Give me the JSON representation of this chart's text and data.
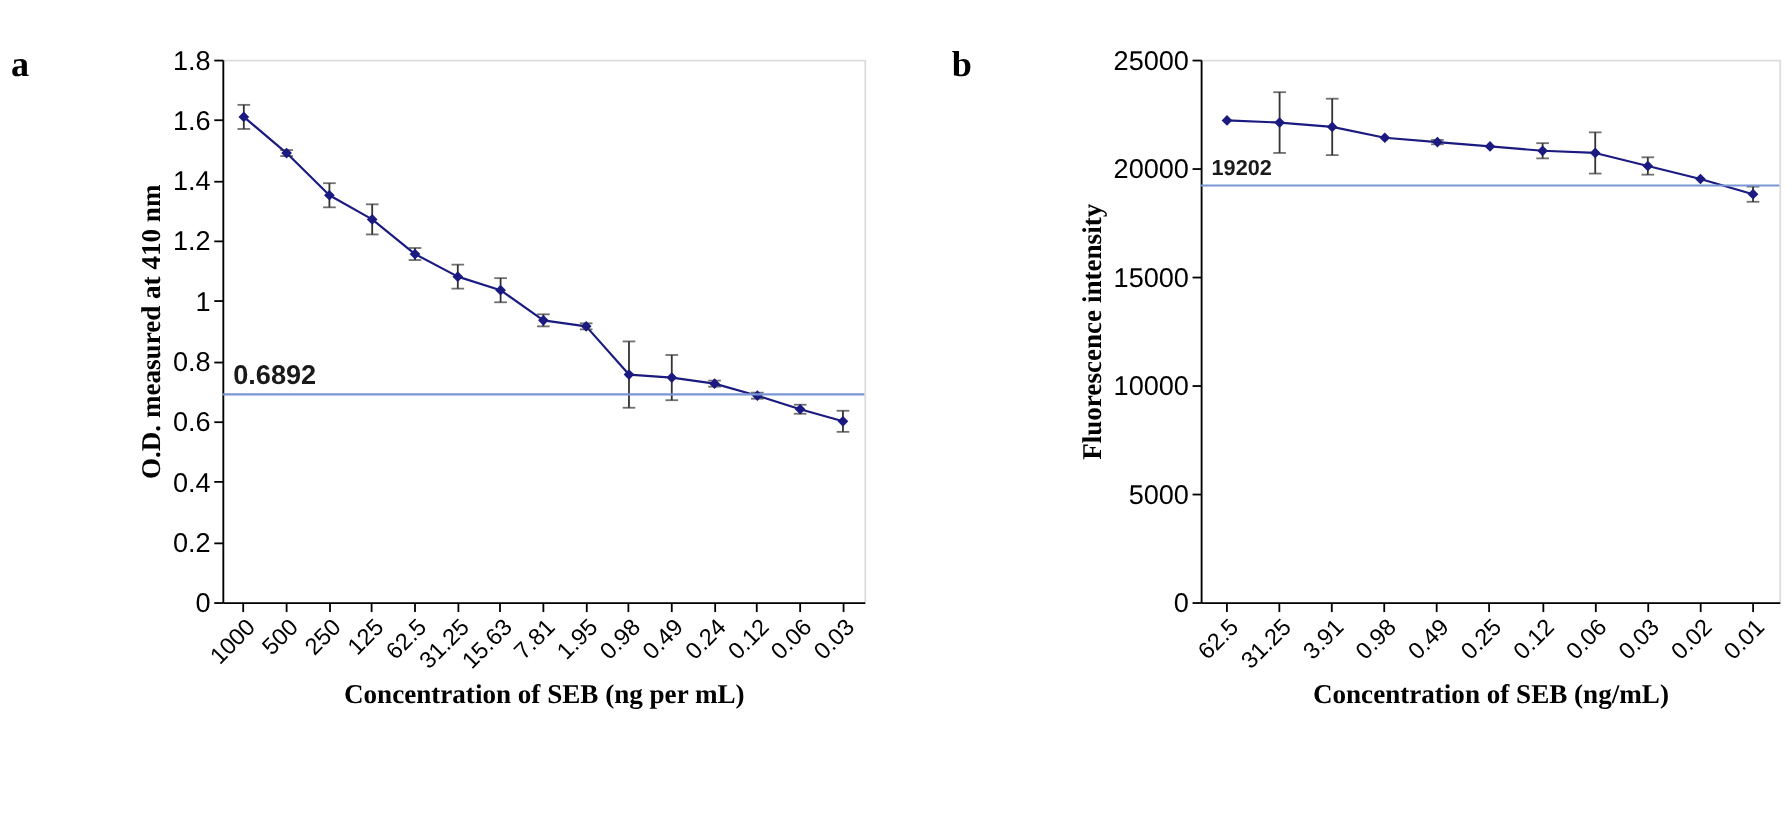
{
  "chart_data": [
    {
      "type": "line",
      "title": "a",
      "xlabel": "Concentration of SEB (ng per mL)",
      "ylabel": "O.D. measured at 410 nm",
      "categories": [
        "1000",
        "500",
        "250",
        "125",
        "62.5",
        "31.25",
        "15.63",
        "7.81",
        "1.95",
        "0.98",
        "0.49",
        "0.24",
        "0.12",
        "0.06",
        "0.03"
      ],
      "series": [
        {
          "color": "#1a1a80",
          "values": [
            1.61,
            1.49,
            1.35,
            1.27,
            1.155,
            1.08,
            1.035,
            0.935,
            0.915,
            0.755,
            0.745,
            0.725,
            0.685,
            0.64,
            0.6
          ],
          "errors": [
            0.04,
            0.01,
            0.04,
            0.05,
            0.02,
            0.04,
            0.04,
            0.02,
            0.01,
            0.11,
            0.075,
            0.01,
            0.01,
            0.015,
            0.035
          ]
        }
      ],
      "ylim": [
        0,
        1.8
      ],
      "yticks": [
        0,
        0.2,
        0.4,
        0.6,
        0.8,
        1,
        1.2,
        1.4,
        1.6,
        1.8
      ],
      "marker": "diamond",
      "grid": false,
      "ref_lines": [
        {
          "axis": "y",
          "value": 0.6892,
          "label": "0.6892",
          "color": "#7a96d6"
        }
      ]
    },
    {
      "type": "line",
      "title": "b",
      "xlabel": "Concentration of SEB (ng/mL)",
      "ylabel": "Fluorescence intensity",
      "categories": [
        "62.5",
        "31.25",
        "3.91",
        "0.98",
        "0.49",
        "0.25",
        "0.12",
        "0.06",
        "0.03",
        "0.02",
        "0.01"
      ],
      "series": [
        {
          "color": "#1a1a80",
          "values": [
            22200,
            22100,
            21900,
            21400,
            21200,
            21000,
            20800,
            20700,
            20100,
            19500,
            18800
          ],
          "errors": [
            null,
            1400,
            1300,
            null,
            100,
            null,
            350,
            950,
            400,
            null,
            350
          ]
        }
      ],
      "ylim": [
        0,
        25000
      ],
      "yticks": [
        0,
        5000,
        10000,
        15000,
        20000,
        25000
      ],
      "marker": "diamond",
      "grid": false,
      "ref_lines": [
        {
          "axis": "y",
          "value": 19202,
          "label": "19202",
          "color": "#7a96d6"
        }
      ]
    }
  ]
}
